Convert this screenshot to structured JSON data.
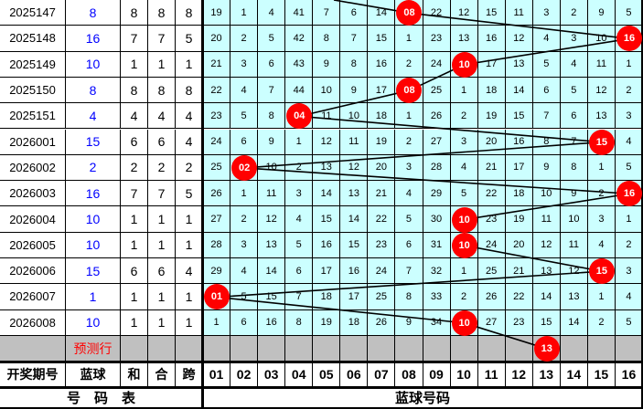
{
  "rows": [
    {
      "issue": "2025147",
      "blue": "8",
      "he": "8",
      "hz": "8",
      "kua": "8",
      "nums": [
        "19",
        "1",
        "4",
        "41",
        "7",
        "6",
        "14",
        "08",
        "22",
        "12",
        "15",
        "11",
        "3",
        "2",
        "9",
        "5"
      ]
    },
    {
      "issue": "2025148",
      "blue": "16",
      "he": "7",
      "hz": "7",
      "kua": "5",
      "nums": [
        "20",
        "2",
        "5",
        "42",
        "8",
        "7",
        "15",
        "1",
        "23",
        "13",
        "16",
        "12",
        "4",
        "3",
        "10",
        "16"
      ]
    },
    {
      "issue": "2025149",
      "blue": "10",
      "he": "1",
      "hz": "1",
      "kua": "1",
      "nums": [
        "21",
        "3",
        "6",
        "43",
        "9",
        "8",
        "16",
        "2",
        "24",
        "10",
        "17",
        "13",
        "5",
        "4",
        "11",
        "1"
      ]
    },
    {
      "issue": "2025150",
      "blue": "8",
      "he": "8",
      "hz": "8",
      "kua": "8",
      "nums": [
        "22",
        "4",
        "7",
        "44",
        "10",
        "9",
        "17",
        "08",
        "25",
        "1",
        "18",
        "14",
        "6",
        "5",
        "12",
        "2"
      ]
    },
    {
      "issue": "2025151",
      "blue": "4",
      "he": "4",
      "hz": "4",
      "kua": "4",
      "nums": [
        "23",
        "5",
        "8",
        "04",
        "11",
        "10",
        "18",
        "1",
        "26",
        "2",
        "19",
        "15",
        "7",
        "6",
        "13",
        "3"
      ]
    },
    {
      "issue": "2026001",
      "blue": "15",
      "he": "6",
      "hz": "6",
      "kua": "4",
      "nums": [
        "24",
        "6",
        "9",
        "1",
        "12",
        "11",
        "19",
        "2",
        "27",
        "3",
        "20",
        "16",
        "8",
        "7",
        "15",
        "4"
      ]
    },
    {
      "issue": "2026002",
      "blue": "2",
      "he": "2",
      "hz": "2",
      "kua": "2",
      "nums": [
        "25",
        "02",
        "10",
        "2",
        "13",
        "12",
        "20",
        "3",
        "28",
        "4",
        "21",
        "17",
        "9",
        "8",
        "1",
        "5"
      ]
    },
    {
      "issue": "2026003",
      "blue": "16",
      "he": "7",
      "hz": "7",
      "kua": "5",
      "nums": [
        "26",
        "1",
        "11",
        "3",
        "14",
        "13",
        "21",
        "4",
        "29",
        "5",
        "22",
        "18",
        "10",
        "9",
        "2",
        "16"
      ]
    },
    {
      "issue": "2026004",
      "blue": "10",
      "he": "1",
      "hz": "1",
      "kua": "1",
      "nums": [
        "27",
        "2",
        "12",
        "4",
        "15",
        "14",
        "22",
        "5",
        "30",
        "10",
        "23",
        "19",
        "11",
        "10",
        "3",
        "1"
      ]
    },
    {
      "issue": "2026005",
      "blue": "10",
      "he": "1",
      "hz": "1",
      "kua": "1",
      "nums": [
        "28",
        "3",
        "13",
        "5",
        "16",
        "15",
        "23",
        "6",
        "31",
        "10",
        "24",
        "20",
        "12",
        "11",
        "4",
        "2"
      ]
    },
    {
      "issue": "2026006",
      "blue": "15",
      "he": "6",
      "hz": "6",
      "kua": "4",
      "nums": [
        "29",
        "4",
        "14",
        "6",
        "17",
        "16",
        "24",
        "7",
        "32",
        "1",
        "25",
        "21",
        "13",
        "12",
        "15",
        "3"
      ]
    },
    {
      "issue": "2026007",
      "blue": "1",
      "he": "1",
      "hz": "1",
      "kua": "1",
      "nums": [
        "01",
        "5",
        "15",
        "7",
        "18",
        "17",
        "25",
        "8",
        "33",
        "2",
        "26",
        "22",
        "14",
        "13",
        "1",
        "4"
      ]
    },
    {
      "issue": "2026008",
      "blue": "10",
      "he": "1",
      "hz": "1",
      "kua": "1",
      "nums": [
        "1",
        "6",
        "16",
        "8",
        "19",
        "18",
        "26",
        "9",
        "34",
        "10",
        "27",
        "23",
        "15",
        "14",
        "2",
        "5"
      ]
    }
  ],
  "prediction": {
    "label": "预测行",
    "blue": "13"
  },
  "header": {
    "issue": "开奖期号",
    "blue": "蓝球",
    "he": "和",
    "hz": "合",
    "kua": "跨",
    "cols": [
      "01",
      "02",
      "03",
      "04",
      "05",
      "06",
      "07",
      "08",
      "09",
      "10",
      "11",
      "12",
      "13",
      "14",
      "15",
      "16"
    ]
  },
  "footer": {
    "left": "号　码　表",
    "right": "蓝球号码"
  },
  "colors": {
    "grid": "#ccffff",
    "ball": "#ff0000",
    "blue_text": "#0000ff",
    "pred_text": "#ff0000",
    "pred_row": "#c0c0c0"
  }
}
